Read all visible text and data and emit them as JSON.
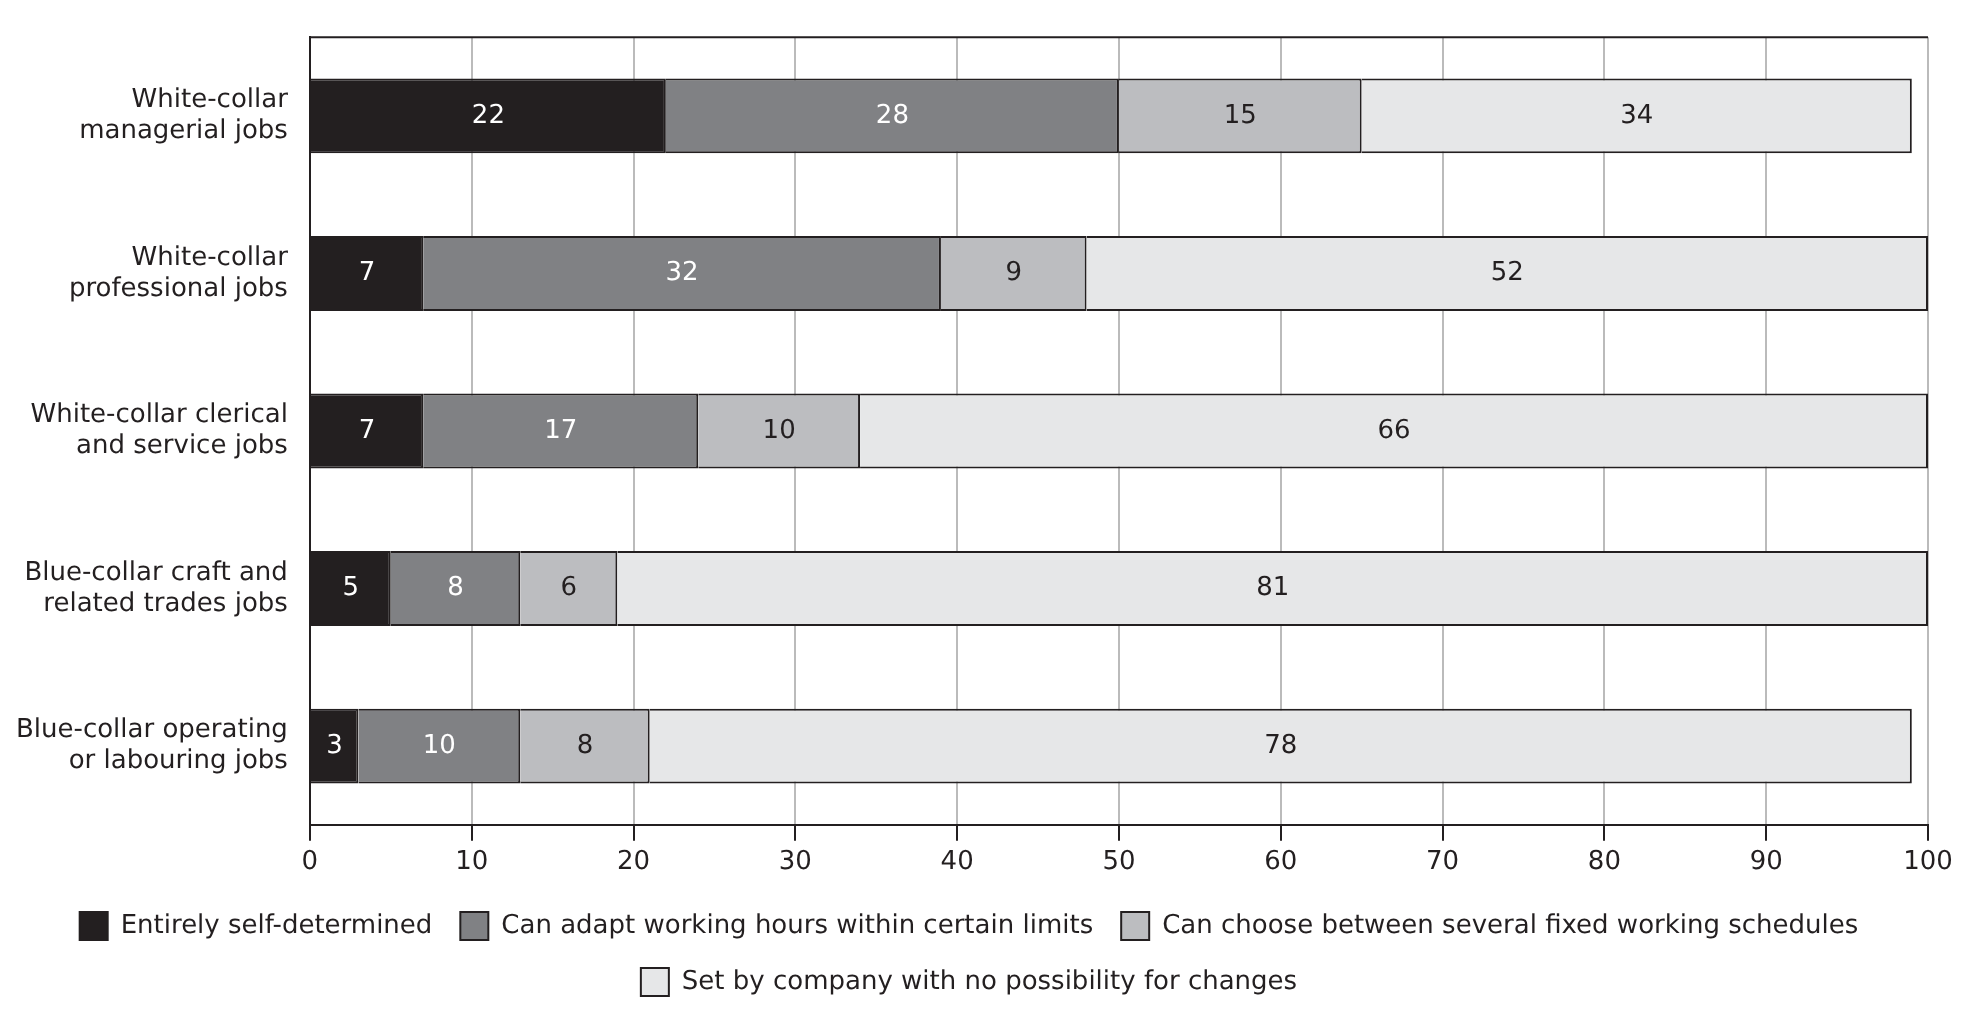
{
  "chart_data": {
    "type": "bar",
    "orientation": "horizontal",
    "stacked": true,
    "categories": [
      "White-collar\nmanagerial jobs",
      "White-collar\nprofessional jobs",
      "White-collar clerical\nand service jobs",
      "Blue-collar craft and\nrelated trades jobs",
      "Blue-collar operating\nor labouring jobs"
    ],
    "series": [
      {
        "name": "Entirely self-determined",
        "color": "#231f20",
        "values": [
          22,
          7,
          7,
          5,
          3
        ]
      },
      {
        "name": "Can adapt working hours within certain limits",
        "color": "#808184",
        "values": [
          28,
          32,
          17,
          8,
          10
        ]
      },
      {
        "name": "Can choose between several fixed working schedules",
        "color": "#bcbdc0",
        "values": [
          15,
          9,
          10,
          6,
          8
        ]
      },
      {
        "name": "Set by company with no possibility for changes",
        "color": "#e6e7e8",
        "values": [
          34,
          52,
          66,
          81,
          78
        ]
      }
    ],
    "xlim": [
      0,
      100
    ],
    "xticks": [
      0,
      10,
      20,
      30,
      40,
      50,
      60,
      70,
      80,
      90,
      100
    ],
    "grid": "x",
    "legend": "bottom",
    "data_labels": true
  }
}
